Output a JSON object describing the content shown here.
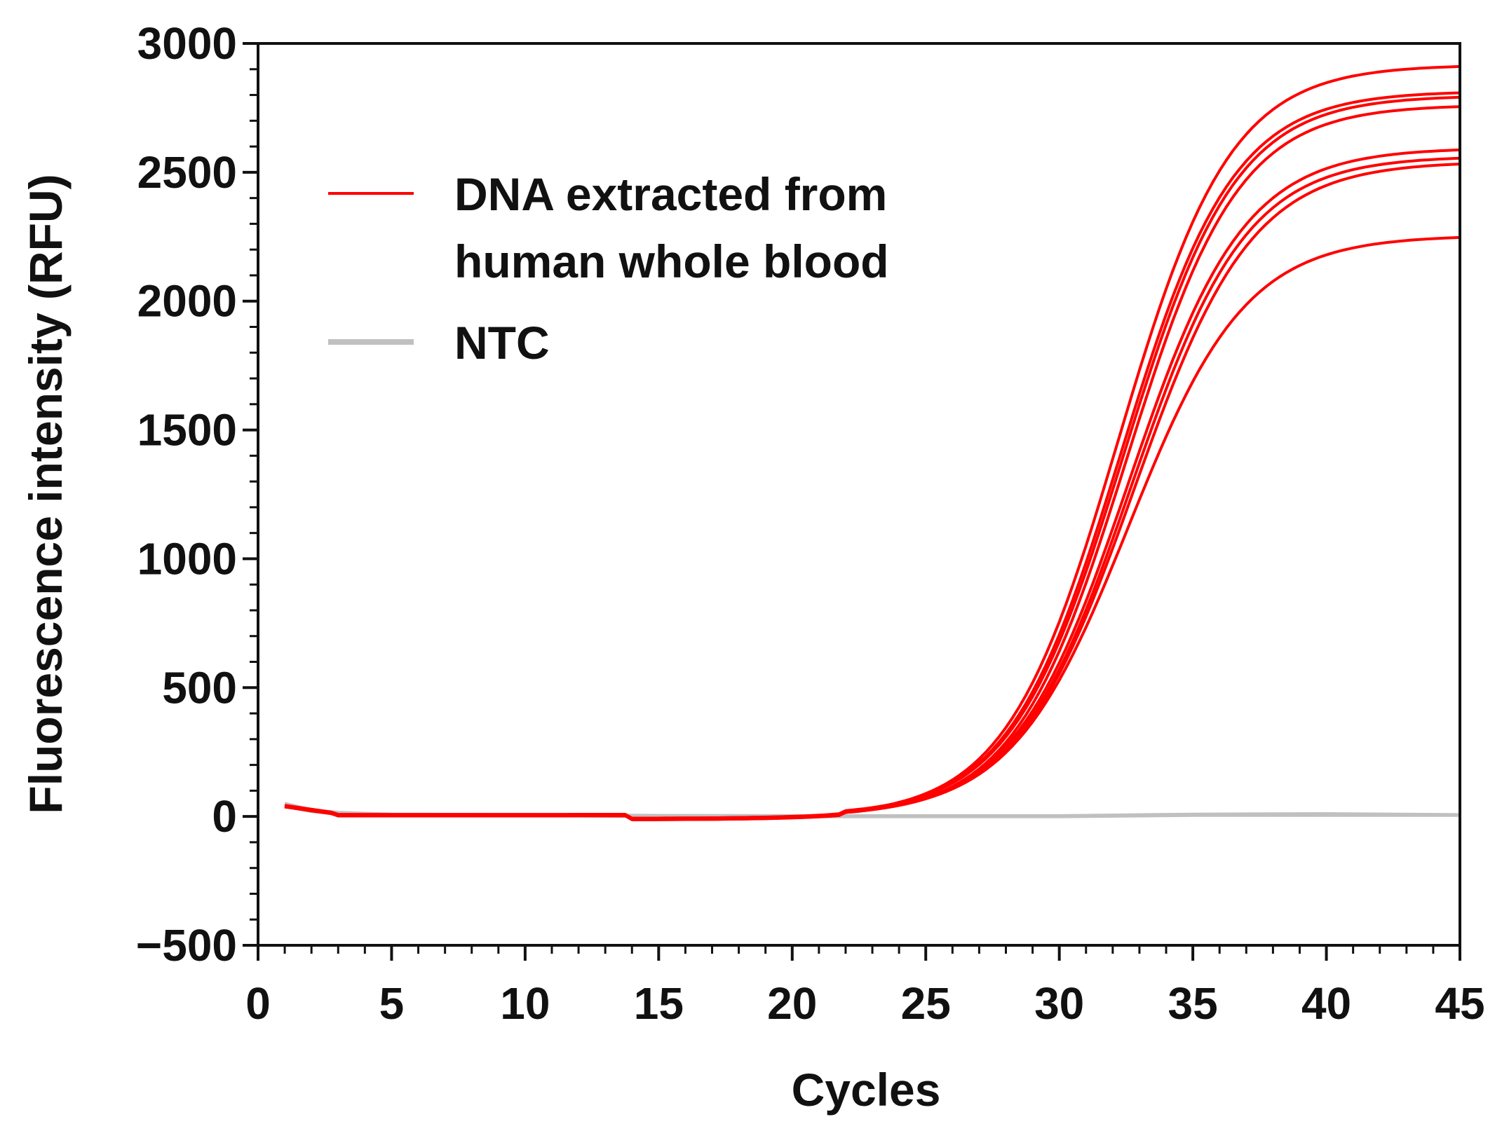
{
  "chart_data": {
    "type": "line",
    "title": "",
    "xlabel": "Cycles",
    "ylabel": "Fluorescence intensity (RFU)",
    "xlim": [
      0,
      45
    ],
    "ylim": [
      -500,
      3000
    ],
    "x_ticks": [
      0,
      5,
      10,
      15,
      20,
      25,
      30,
      35,
      40,
      45
    ],
    "x_tick_labels": [
      "0",
      "5",
      "10",
      "15",
      "20",
      "25",
      "30",
      "35",
      "40",
      "45"
    ],
    "y_ticks": [
      -500,
      0,
      500,
      1000,
      1500,
      2000,
      2500,
      3000
    ],
    "y_tick_labels": [
      "−500",
      "0",
      "500",
      "1000",
      "1500",
      "2000",
      "2500",
      "3000"
    ],
    "grid": false,
    "legend_position": "top-left",
    "legend": [
      {
        "label_line1": "DNA extracted from",
        "label_line2": "human whole blood",
        "color": "#ff0000"
      },
      {
        "label": "NTC",
        "color": "#c0c0c0"
      }
    ],
    "sample_series": [
      {
        "name": "DNA extracted from human whole blood",
        "plateau": 2920,
        "midpoint": 32.2,
        "slope": 2.1
      },
      {
        "name": "DNA extracted from human whole blood",
        "plateau": 2815,
        "midpoint": 32.3,
        "slope": 2.1
      },
      {
        "name": "DNA extracted from human whole blood",
        "plateau": 2795,
        "midpoint": 32.4,
        "slope": 2.1
      },
      {
        "name": "DNA extracted from human whole blood",
        "plateau": 2765,
        "midpoint": 32.5,
        "slope": 2.1
      },
      {
        "name": "DNA extracted from human whole blood",
        "plateau": 2595,
        "midpoint": 32.6,
        "slope": 2.15
      },
      {
        "name": "DNA extracted from human whole blood",
        "plateau": 2560,
        "midpoint": 32.7,
        "slope": 2.15
      },
      {
        "name": "DNA extracted from human whole blood",
        "plateau": 2545,
        "midpoint": 32.8,
        "slope": 2.2
      },
      {
        "name": "DNA extracted from human whole blood",
        "plateau": 2255,
        "midpoint": 32.6,
        "slope": 2.2
      }
    ],
    "ntc_series": [
      {
        "name": "NTC",
        "x": [
          1,
          2,
          3,
          5,
          10,
          15,
          20,
          25,
          30,
          35,
          40,
          45
        ],
        "y": [
          40,
          20,
          10,
          5,
          5,
          0,
          0,
          0,
          0,
          5,
          5,
          5
        ]
      },
      {
        "name": "NTC",
        "x": [
          1,
          2,
          3,
          5,
          10,
          15,
          20,
          25,
          30,
          35,
          40,
          45
        ],
        "y": [
          50,
          25,
          15,
          8,
          6,
          3,
          2,
          2,
          2,
          8,
          10,
          6
        ]
      }
    ],
    "colors": {
      "sample": "#ff0000",
      "ntc": "#c0c0c0",
      "axis": "#111111"
    }
  }
}
